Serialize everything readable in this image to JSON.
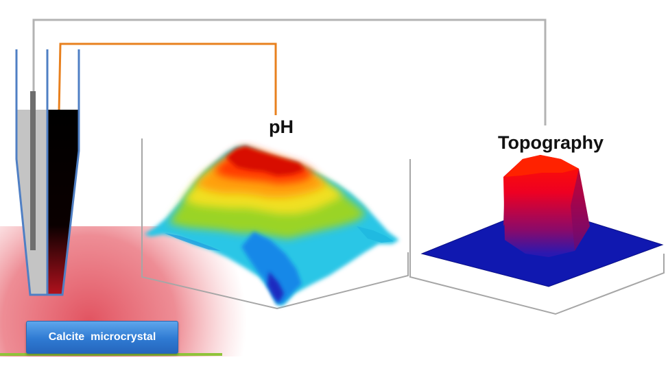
{
  "labels": {
    "ph": "pH",
    "topography": "Topography",
    "sample": "Calcite  microcrystal"
  },
  "colors": {
    "wire_ph": "#e8801e",
    "wire_topo": "#b3b3b3",
    "probe_outline": "#4f7fc4",
    "glow": "#e45a66",
    "sample_box": "#2f7ad2",
    "substrate_line": "#8fc43a",
    "topo_base": "#1018b0",
    "topo_top": "#ff1a00"
  },
  "icons": [
    "double-barrel-nanopipette-icon"
  ]
}
